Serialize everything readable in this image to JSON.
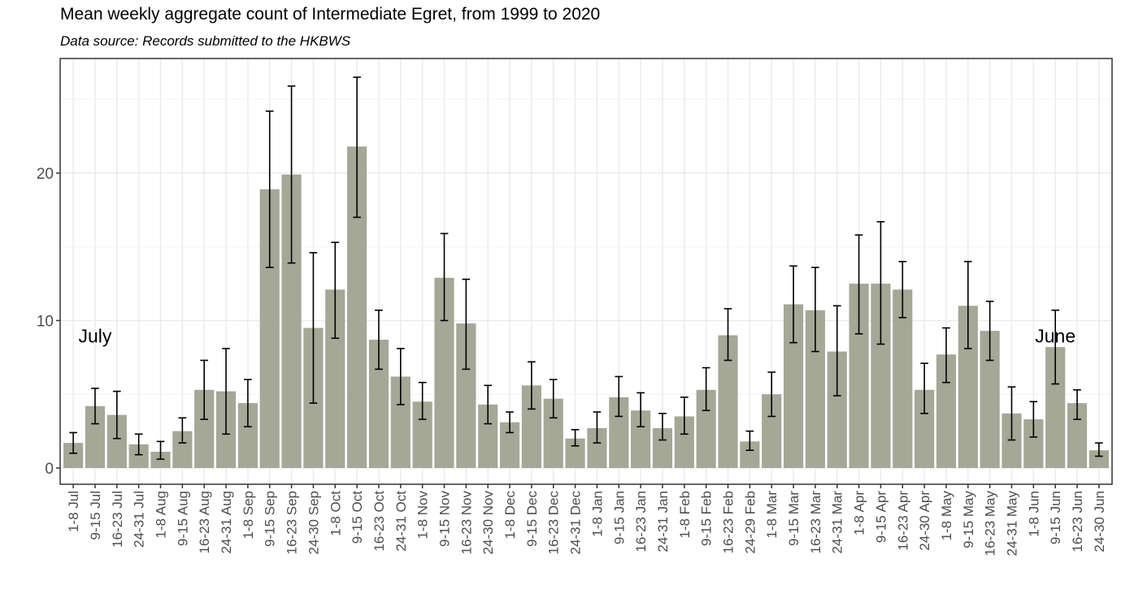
{
  "title": "Mean weekly aggregate count of Intermediate Egret, from 1999 to 2020",
  "subtitle": "Data source: Records submitted to the HKBWS",
  "colors": {
    "bar": "#a5a797",
    "error_bar": "#000000",
    "grid": "#ebebeb",
    "panel_border": "#333333"
  },
  "chart_data": {
    "type": "bar",
    "title": "Mean weekly aggregate count of Intermediate Egret, from 1999 to 2020",
    "subtitle": "Data source: Records submitted to the HKBWS",
    "xlabel": "",
    "ylabel": "",
    "ylim": [
      0,
      28
    ],
    "yticks": [
      0,
      10,
      20
    ],
    "grid": true,
    "legend": "none",
    "categories": [
      "1-8 Jul",
      "9-15 Jul",
      "16-23 Jul",
      "24-31 Jul",
      "1-8 Aug",
      "9-15 Aug",
      "16-23 Aug",
      "24-31 Aug",
      "1-8 Sep",
      "9-15 Sep",
      "16-23 Sep",
      "24-30 Sep",
      "1-8 Oct",
      "9-15 Oct",
      "16-23 Oct",
      "24-31 Oct",
      "1-8 Nov",
      "9-15 Nov",
      "16-23 Nov",
      "24-30 Nov",
      "1-8 Dec",
      "9-15 Dec",
      "16-23 Dec",
      "24-31 Dec",
      "1-8 Jan",
      "9-15 Jan",
      "16-23 Jan",
      "24-31 Jan",
      "1-8 Feb",
      "9-15 Feb",
      "16-23 Feb",
      "24-29 Feb",
      "1-8 Mar",
      "9-15 Mar",
      "16-23 Mar",
      "24-31 Mar",
      "1-8 Apr",
      "9-15 Apr",
      "16-23 Apr",
      "24-30 Apr",
      "1-8 May",
      "9-15 May",
      "16-23 May",
      "24-31 May",
      "1-8 Jun",
      "9-15 Jun",
      "16-23 Jun",
      "24-30 Jun"
    ],
    "values": [
      1.7,
      4.2,
      3.6,
      1.6,
      1.1,
      2.5,
      5.3,
      5.2,
      4.4,
      18.9,
      19.9,
      9.5,
      12.1,
      21.8,
      8.7,
      6.2,
      4.5,
      12.9,
      9.8,
      4.3,
      3.1,
      5.6,
      4.7,
      2.0,
      2.7,
      4.8,
      3.9,
      2.7,
      3.5,
      5.3,
      9.0,
      1.8,
      5.0,
      11.1,
      10.7,
      7.9,
      12.5,
      12.5,
      12.1,
      5.3,
      7.7,
      11.0,
      9.3,
      3.7,
      3.3,
      8.2,
      4.4,
      1.2
    ],
    "error_low": [
      1.0,
      3.0,
      2.0,
      0.9,
      0.6,
      1.7,
      3.3,
      2.3,
      2.8,
      13.6,
      13.9,
      4.4,
      8.8,
      17.0,
      6.7,
      4.3,
      3.3,
      10.0,
      6.7,
      3.0,
      2.4,
      4.0,
      3.4,
      1.5,
      1.7,
      3.5,
      2.8,
      1.9,
      2.3,
      3.9,
      7.3,
      1.2,
      3.5,
      8.5,
      7.9,
      4.9,
      9.1,
      8.4,
      10.2,
      3.7,
      5.8,
      8.1,
      7.3,
      1.9,
      2.1,
      5.7,
      3.3,
      0.8
    ],
    "error_high": [
      2.4,
      5.4,
      5.2,
      2.3,
      1.8,
      3.4,
      7.3,
      8.1,
      6.0,
      24.2,
      25.9,
      14.6,
      15.3,
      26.5,
      10.7,
      8.1,
      5.8,
      15.9,
      12.8,
      5.6,
      3.8,
      7.2,
      6.0,
      2.6,
      3.8,
      6.2,
      5.1,
      3.7,
      4.8,
      6.8,
      10.8,
      2.5,
      6.5,
      13.7,
      13.6,
      11.0,
      15.8,
      16.7,
      14.0,
      7.1,
      9.5,
      14.0,
      11.3,
      5.5,
      4.5,
      10.7,
      5.3,
      1.7
    ],
    "annotations": [
      {
        "text": "July",
        "category_index": 1,
        "y": 9
      },
      {
        "text": "June",
        "category_index": 45,
        "y": 9
      }
    ]
  }
}
